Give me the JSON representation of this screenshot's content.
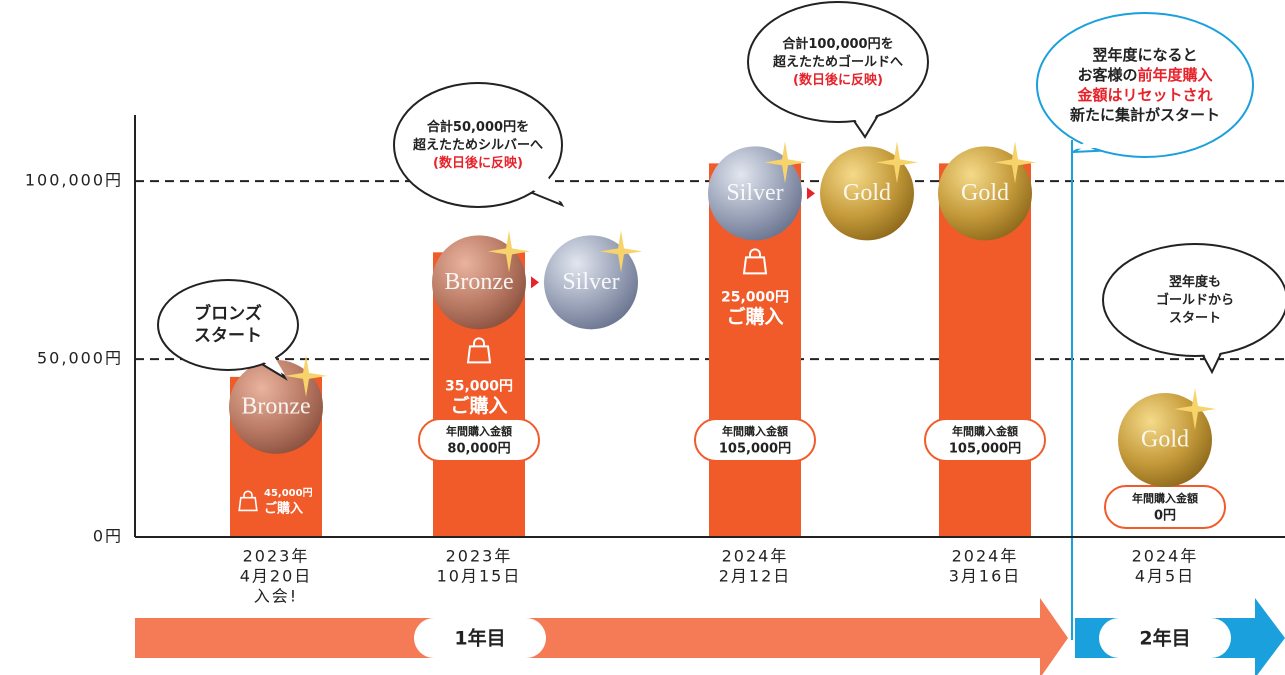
{
  "chart_data": {
    "type": "bar",
    "categories": [
      [
        "2023年",
        "4月20日",
        "入会!"
      ],
      [
        "2023年",
        "10月15日"
      ],
      [
        "2024年",
        "2月12日"
      ],
      [
        "2024年",
        "3月16日"
      ],
      [
        "2024年",
        "4月5日"
      ]
    ],
    "values": [
      45000,
      80000,
      105000,
      105000,
      0
    ],
    "value_labels": [
      null,
      "80,000円",
      "105,000円",
      "105,000円",
      "0円"
    ],
    "total_caption": "年間購入金額",
    "color": "#f15a29",
    "ylim": [
      0,
      120000
    ],
    "yticks": [
      {
        "value": 0,
        "label": "0円"
      },
      {
        "value": 50000,
        "label": "50,000円"
      },
      {
        "value": 100000,
        "label": "100,000円"
      }
    ],
    "grid": true,
    "purchase_caption": "ご購入",
    "purchase_labels": [
      "45,000円",
      "35,000円",
      "25,000円",
      null,
      null
    ],
    "coins": [
      [
        "Bronze"
      ],
      [
        "Bronze",
        "Silver"
      ],
      [
        "Silver",
        "Gold"
      ],
      [
        "Gold"
      ],
      [
        "Gold"
      ]
    ],
    "annotations": [
      {
        "lines": [
          [
            {
              "text": "ブロンズ"
            }
          ],
          [
            {
              "text": "スタート"
            }
          ]
        ]
      },
      {
        "lines": [
          [
            {
              "text": "合計50,000円を"
            }
          ],
          [
            {
              "text": "超えたためシルバーへ"
            }
          ],
          [
            {
              "text": "(数日後に反映)",
              "color": "#e8222a"
            }
          ]
        ]
      },
      {
        "lines": [
          [
            {
              "text": "合計100,000円を"
            }
          ],
          [
            {
              "text": "超えたためゴールドへ"
            }
          ],
          [
            {
              "text": "(数日後に反映)",
              "color": "#e8222a"
            }
          ]
        ]
      },
      {
        "border": "#1aa0dc",
        "lines": [
          [
            {
              "text": "翌年度になると"
            }
          ],
          [
            {
              "text": "お客様の"
            },
            {
              "text": "前年度購入",
              "color": "#e8222a"
            }
          ],
          [
            {
              "text": "金額はリセットされ",
              "color": "#e8222a"
            }
          ],
          [
            {
              "text": "新たに集計がスタート"
            }
          ]
        ]
      },
      {
        "lines": [
          [
            {
              "text": "翌年度も"
            }
          ],
          [
            {
              "text": "ゴールドから"
            }
          ],
          [
            {
              "text": "スタート"
            }
          ]
        ]
      }
    ],
    "periods": [
      {
        "label": "1年目",
        "color": "#f47b55"
      },
      {
        "label": "2年目",
        "color": "#1aa0dc"
      }
    ]
  }
}
